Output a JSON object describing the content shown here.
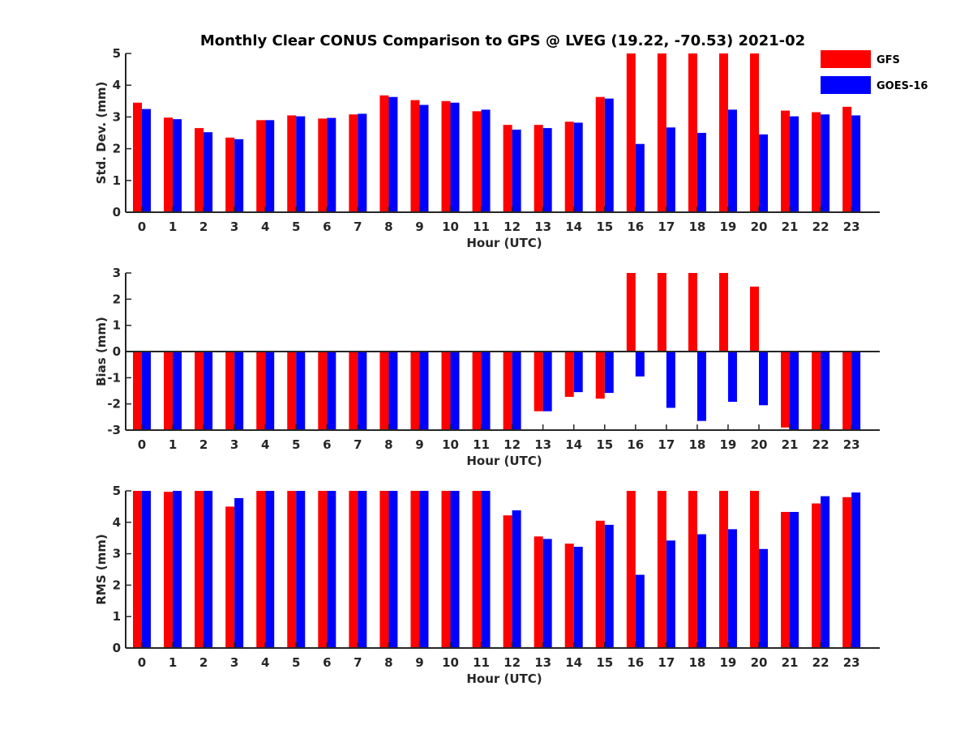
{
  "title": "Monthly Clear CONUS Comparison to GPS @ LVEG (19.22, -70.53) 2021-02",
  "legend": [
    {
      "name": "GFS",
      "color": "#ff0000"
    },
    {
      "name": "GOES-16",
      "color": "#0000ff"
    }
  ],
  "chart_data": [
    {
      "type": "bar",
      "xlabel": "Hour (UTC)",
      "ylabel": "Std. Dev. (mm)",
      "ylim": [
        0,
        5
      ],
      "yticks": [
        0,
        1,
        2,
        3,
        4,
        5
      ],
      "categories": [
        "0",
        "1",
        "2",
        "3",
        "4",
        "5",
        "6",
        "7",
        "8",
        "9",
        "10",
        "11",
        "12",
        "13",
        "14",
        "15",
        "16",
        "17",
        "18",
        "19",
        "20",
        "21",
        "22",
        "23"
      ],
      "legend_position": "top-right",
      "series": [
        {
          "name": "GFS",
          "color": "#ff0000",
          "values": [
            3.45,
            2.98,
            2.65,
            2.35,
            2.9,
            3.05,
            2.95,
            3.08,
            3.68,
            3.53,
            3.5,
            3.18,
            2.75,
            2.75,
            2.85,
            3.63,
            5.0,
            5.0,
            5.0,
            5.0,
            5.0,
            3.2,
            3.15,
            3.32
          ]
        },
        {
          "name": "GOES-16",
          "color": "#0000ff",
          "values": [
            3.25,
            2.93,
            2.52,
            2.3,
            2.9,
            3.02,
            2.97,
            3.1,
            3.63,
            3.38,
            3.45,
            3.23,
            2.6,
            2.65,
            2.82,
            3.58,
            2.15,
            2.67,
            2.5,
            3.23,
            2.45,
            3.02,
            3.08,
            3.05
          ]
        }
      ]
    },
    {
      "type": "bar",
      "xlabel": "Hour (UTC)",
      "ylabel": "Bias (mm)",
      "ylim": [
        -3,
        3
      ],
      "yticks": [
        -3,
        -2,
        -1,
        0,
        1,
        2,
        3
      ],
      "baseline": 0,
      "categories": [
        "0",
        "1",
        "2",
        "3",
        "4",
        "5",
        "6",
        "7",
        "8",
        "9",
        "10",
        "11",
        "12",
        "13",
        "14",
        "15",
        "16",
        "17",
        "18",
        "19",
        "20",
        "21",
        "22",
        "23"
      ],
      "series": [
        {
          "name": "GFS",
          "color": "#ff0000",
          "values": [
            -3,
            -3,
            -3,
            -3,
            -3,
            -3,
            -3,
            -3,
            -3,
            -3,
            -3,
            -3,
            -3,
            -2.28,
            -1.73,
            -1.8,
            3.0,
            3.0,
            3.0,
            3.0,
            2.48,
            -2.9,
            -3,
            -3
          ]
        },
        {
          "name": "GOES-16",
          "color": "#0000ff",
          "values": [
            -3,
            -3,
            -3,
            -3,
            -3,
            -3,
            -3,
            -3,
            -3,
            -3,
            -3,
            -3,
            -3,
            -2.28,
            -1.55,
            -1.58,
            -0.95,
            -2.15,
            -2.65,
            -1.92,
            -2.05,
            -3,
            -3,
            -3
          ]
        }
      ]
    },
    {
      "type": "bar",
      "xlabel": "Hour (UTC)",
      "ylabel": "RMS (mm)",
      "ylim": [
        0,
        5
      ],
      "yticks": [
        0,
        1,
        2,
        3,
        4,
        5
      ],
      "categories": [
        "0",
        "1",
        "2",
        "3",
        "4",
        "5",
        "6",
        "7",
        "8",
        "9",
        "10",
        "11",
        "12",
        "13",
        "14",
        "15",
        "16",
        "17",
        "18",
        "19",
        "20",
        "21",
        "22",
        "23"
      ],
      "series": [
        {
          "name": "GFS",
          "color": "#ff0000",
          "values": [
            5.0,
            4.97,
            5.0,
            4.5,
            5.0,
            5.0,
            5.0,
            5.0,
            5.0,
            5.0,
            5.0,
            5.0,
            4.22,
            3.55,
            3.32,
            4.05,
            5.0,
            5.0,
            5.0,
            5.0,
            5.0,
            4.33,
            4.6,
            4.8
          ]
        },
        {
          "name": "GOES-16",
          "color": "#0000ff",
          "values": [
            5.0,
            5.0,
            5.0,
            4.77,
            5.0,
            5.0,
            5.0,
            5.0,
            5.0,
            5.0,
            5.0,
            5.0,
            4.38,
            3.47,
            3.22,
            3.92,
            2.33,
            3.42,
            3.62,
            3.78,
            3.15,
            4.33,
            4.83,
            4.95
          ]
        }
      ]
    }
  ]
}
